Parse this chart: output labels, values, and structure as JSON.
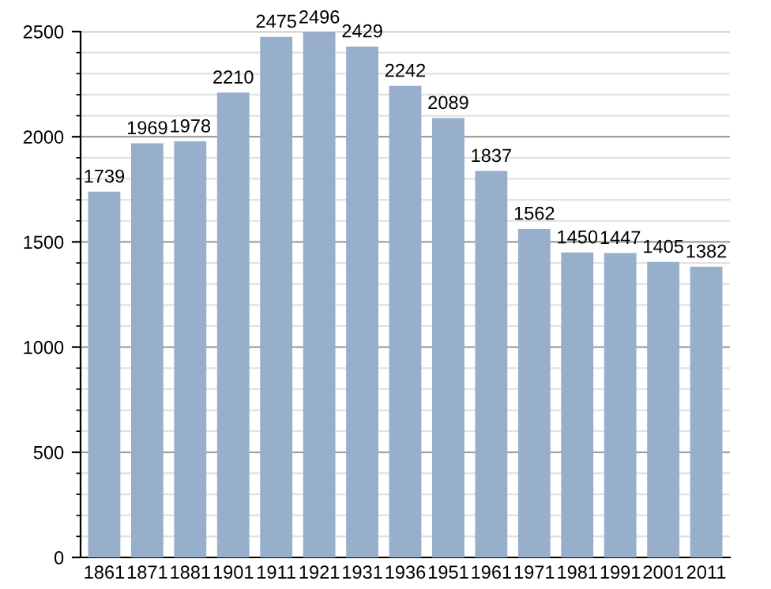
{
  "chart_data": {
    "type": "bar",
    "categories": [
      "1861",
      "1871",
      "1881",
      "1901",
      "1911",
      "1921",
      "1931",
      "1936",
      "1951",
      "1961",
      "1971",
      "1981",
      "1991",
      "2001",
      "2011"
    ],
    "values": [
      1739,
      1969,
      1978,
      2210,
      2475,
      2496,
      2429,
      2242,
      2089,
      1837,
      1562,
      1450,
      1447,
      1405,
      1382
    ],
    "color": "#97afcb",
    "ylim": [
      0,
      2500
    ],
    "yticks": [
      0,
      500,
      1000,
      1500,
      2000,
      2500
    ],
    "grid": "y",
    "data_labels": true
  }
}
